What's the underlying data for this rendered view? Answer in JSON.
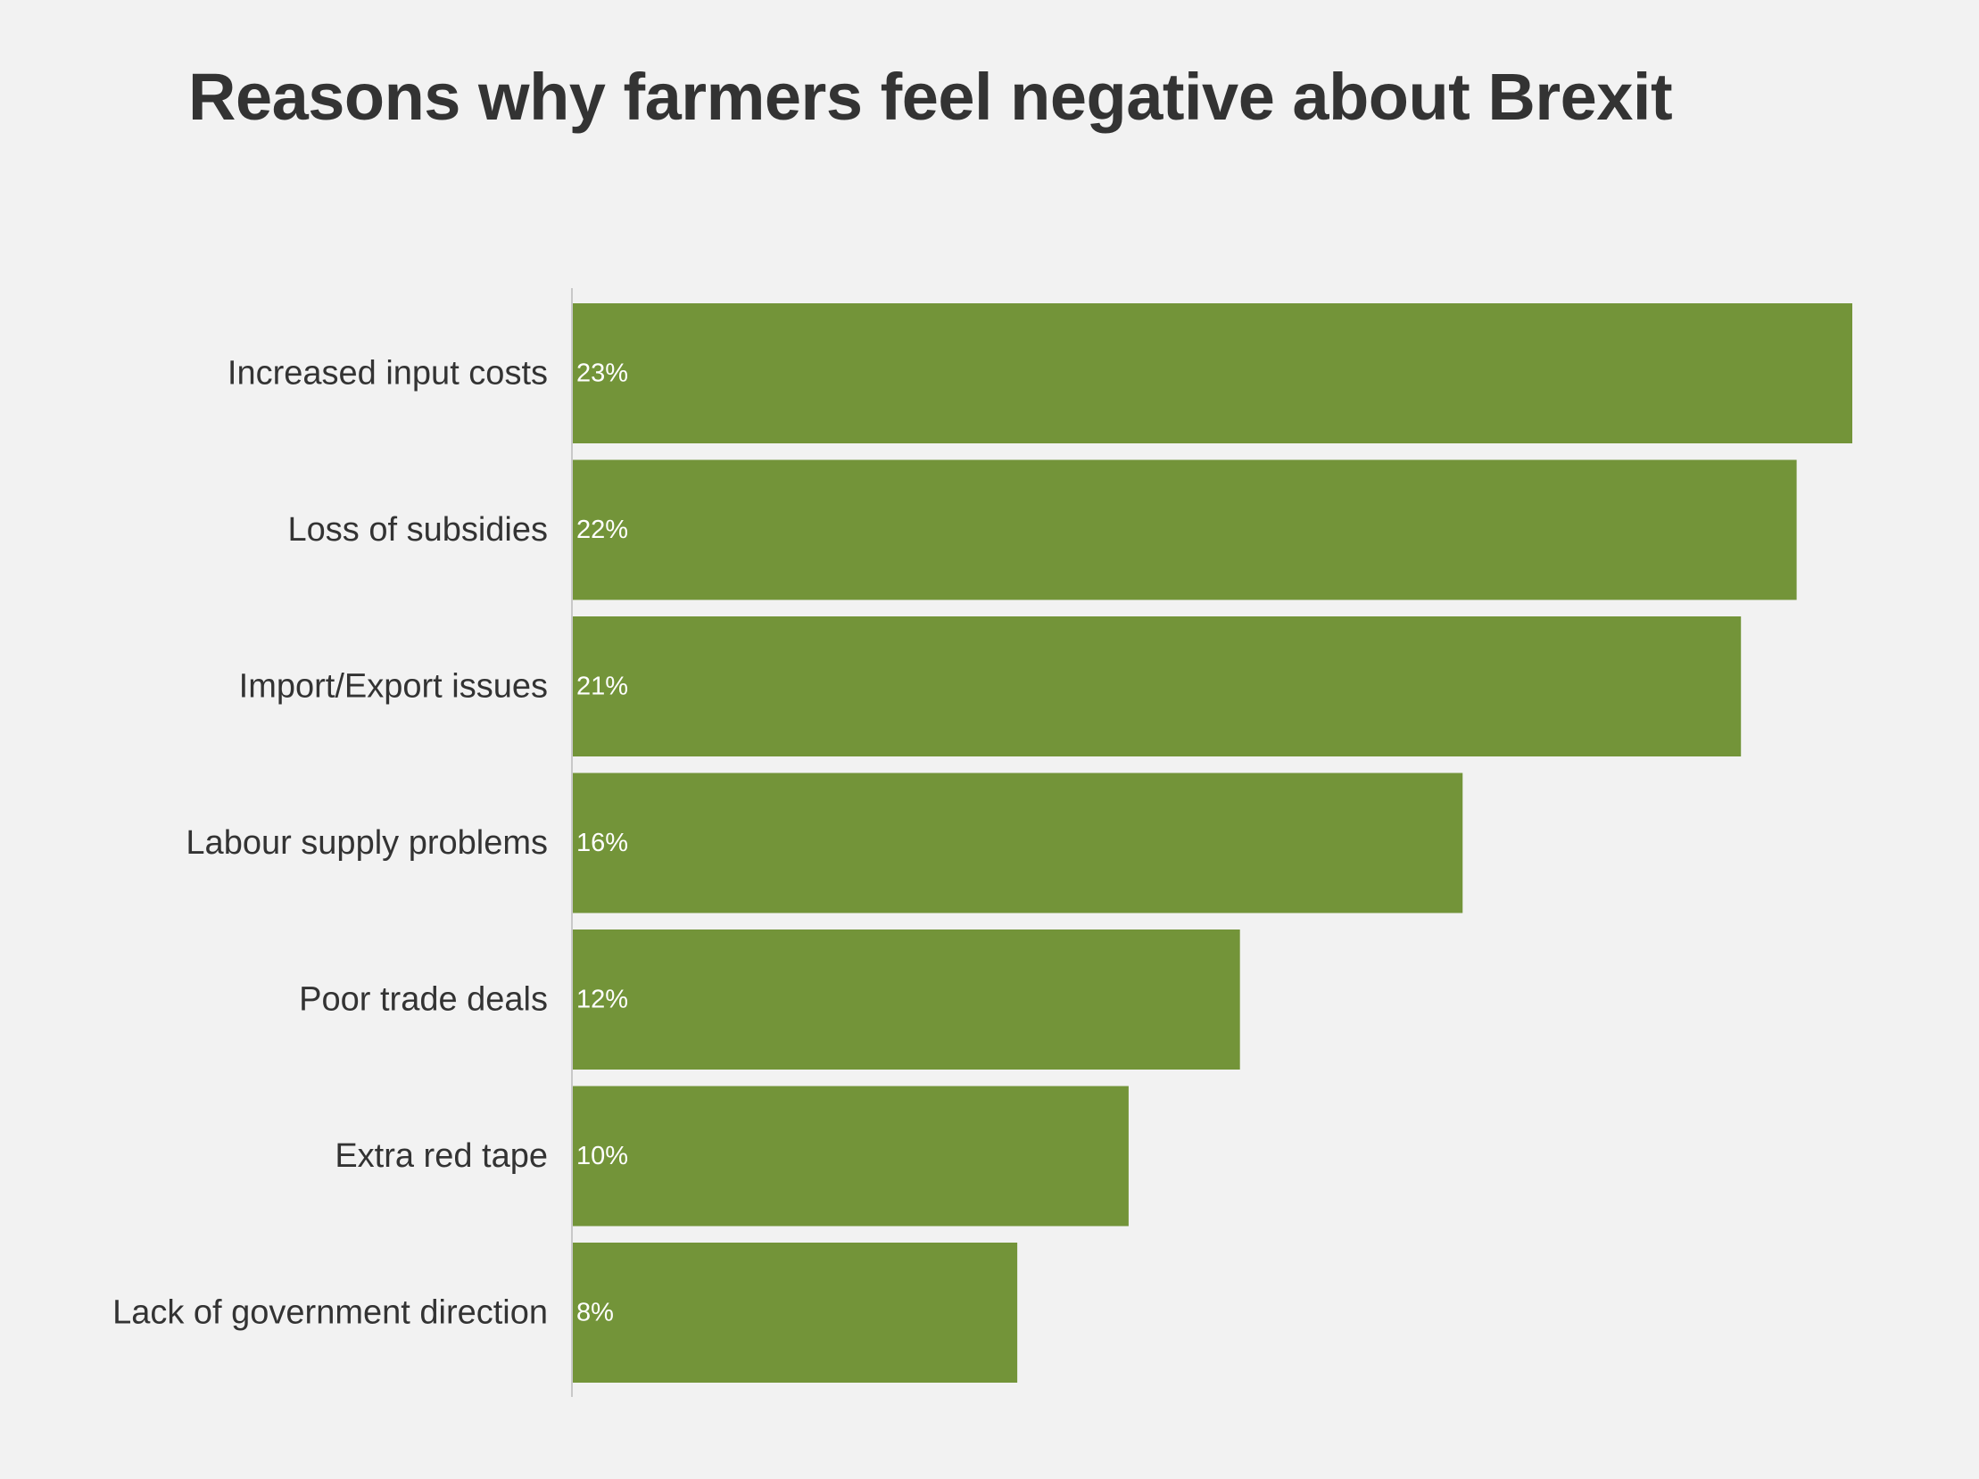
{
  "chart_data": {
    "type": "bar",
    "orientation": "horizontal",
    "title": "Reasons why farmers feel negative about Brexit",
    "categories": [
      "Increased input costs",
      "Loss of subsidies",
      "Import/Export issues",
      "Labour supply problems",
      "Poor trade deals",
      "Extra red tape",
      "Lack of government direction"
    ],
    "values": [
      23,
      22,
      21,
      16,
      12,
      10,
      8
    ],
    "value_labels": [
      "23%",
      "22%",
      "21%",
      "16%",
      "12%",
      "10%",
      "8%"
    ],
    "unit": "%",
    "xlim": [
      0,
      23
    ],
    "grid": false,
    "legend": "none",
    "colors": {
      "bar": "#739439",
      "background": "#f2f2f2",
      "text": "#333333",
      "axis": "#c8c8c8",
      "value_label": "#ffffff"
    }
  }
}
